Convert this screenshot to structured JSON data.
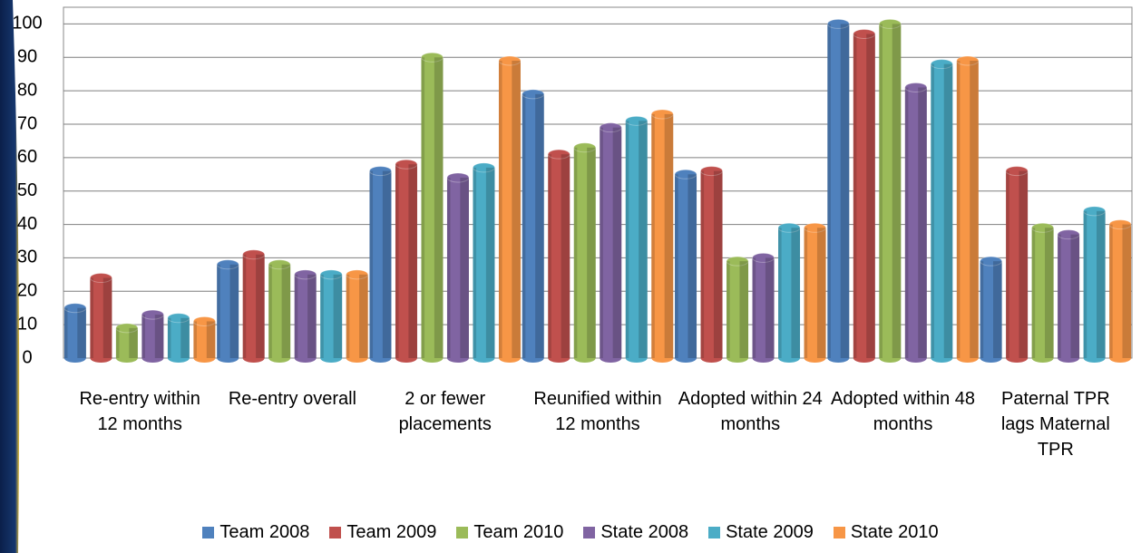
{
  "chart_data": {
    "type": "bar",
    "categories": [
      "Re-entry within 12 months",
      "Re-entry overall",
      "2 or fewer placements",
      "Reunified within 12 months",
      "Adopted within 24 months",
      "Adopted within 48 months",
      "Paternal TPR lags Maternal TPR"
    ],
    "series": [
      {
        "name": "Team 2008",
        "color": "#4f81bd",
        "values": [
          15,
          28,
          56,
          79,
          55,
          100,
          29
        ]
      },
      {
        "name": "Team 2009",
        "color": "#c0504d",
        "values": [
          24,
          31,
          58,
          61,
          56,
          97,
          56
        ]
      },
      {
        "name": "Team 2010",
        "color": "#9bbb59",
        "values": [
          9,
          28,
          90,
          63,
          29,
          100,
          39
        ]
      },
      {
        "name": "State 2008",
        "color": "#8064a2",
        "values": [
          13,
          25,
          54,
          69,
          30,
          81,
          37
        ]
      },
      {
        "name": "State 2009",
        "color": "#4bacc6",
        "values": [
          12,
          25,
          57,
          71,
          39,
          88,
          44
        ]
      },
      {
        "name": "State 2010",
        "color": "#f79646",
        "values": [
          11,
          25,
          89,
          73,
          39,
          89,
          40
        ]
      }
    ],
    "ylim": [
      0,
      105
    ],
    "yticks": [
      0,
      10,
      20,
      30,
      40,
      50,
      60,
      70,
      80,
      90,
      100
    ],
    "grid": true,
    "legend": "bottom"
  }
}
